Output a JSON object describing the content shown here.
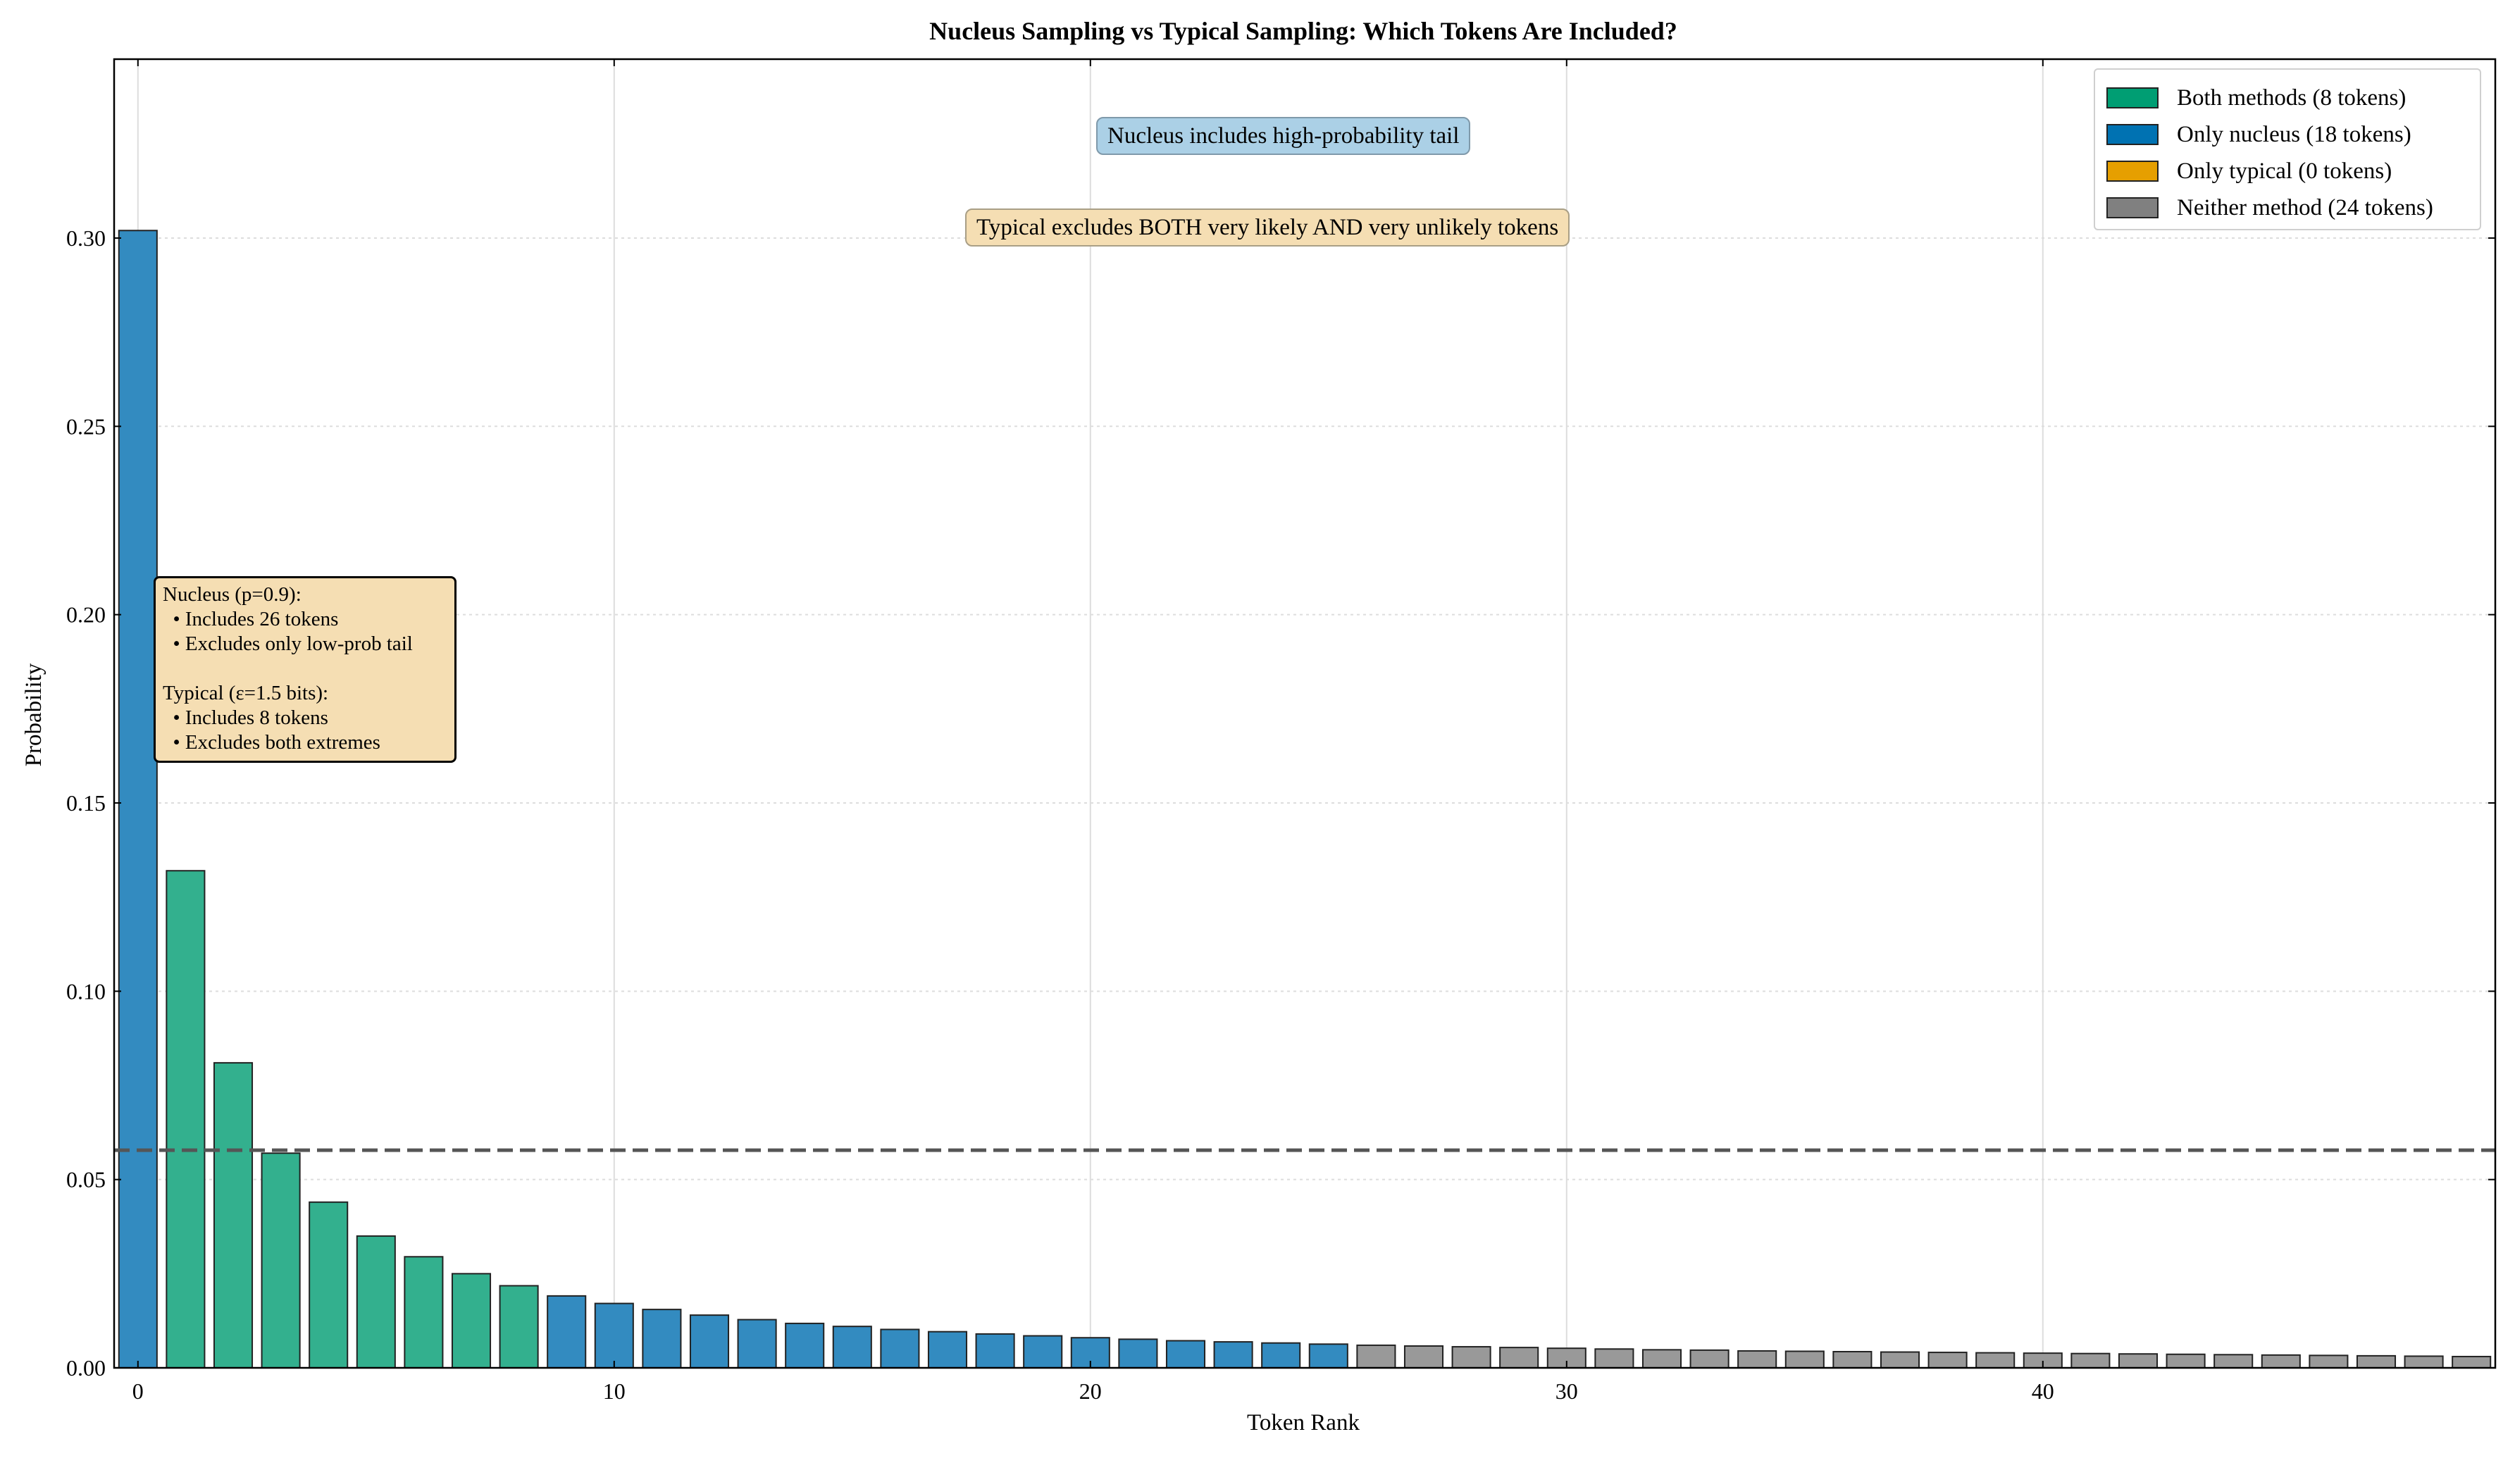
{
  "chart_data": {
    "type": "bar",
    "title": "Nucleus Sampling vs Typical Sampling: Which Tokens Are Included?",
    "xlabel": "Token Rank",
    "ylabel": "Probability",
    "xlim": [
      -0.5,
      49.5
    ],
    "ylim": [
      0,
      0.3475
    ],
    "x_ticks": [
      0,
      10,
      20,
      30,
      40
    ],
    "y_ticks": [
      0.0,
      0.05,
      0.1,
      0.15,
      0.2,
      0.25,
      0.3
    ],
    "y_tick_labels": [
      "0.00",
      "0.05",
      "0.10",
      "0.15",
      "0.20",
      "0.25",
      "0.30"
    ],
    "grid": true,
    "legend_position": "top-right",
    "categories": [
      0,
      1,
      2,
      3,
      4,
      5,
      6,
      7,
      8,
      9,
      10,
      11,
      12,
      13,
      14,
      15,
      16,
      17,
      18,
      19,
      20,
      21,
      22,
      23,
      24,
      25,
      26,
      27,
      28,
      29,
      30,
      31,
      32,
      33,
      34,
      35,
      36,
      37,
      38,
      39,
      40,
      41,
      42,
      43,
      44,
      45,
      46,
      47,
      48,
      49
    ],
    "values": [
      0.302,
      0.132,
      0.081,
      0.057,
      0.044,
      0.035,
      0.0295,
      0.025,
      0.0218,
      0.0191,
      0.0171,
      0.0155,
      0.014,
      0.0128,
      0.0118,
      0.011,
      0.0102,
      0.0096,
      0.009,
      0.0085,
      0.008,
      0.0076,
      0.0072,
      0.0069,
      0.0066,
      0.0063,
      0.006,
      0.0058,
      0.0056,
      0.0054,
      0.0052,
      0.005,
      0.0048,
      0.0047,
      0.0045,
      0.0044,
      0.0043,
      0.0042,
      0.0041,
      0.004,
      0.0039,
      0.0038,
      0.0037,
      0.0036,
      0.0035,
      0.0034,
      0.0033,
      0.0032,
      0.0031,
      0.003
    ],
    "groups": [
      "nucleus",
      "both",
      "both",
      "both",
      "both",
      "both",
      "both",
      "both",
      "both",
      "nucleus",
      "nucleus",
      "nucleus",
      "nucleus",
      "nucleus",
      "nucleus",
      "nucleus",
      "nucleus",
      "nucleus",
      "nucleus",
      "nucleus",
      "nucleus",
      "nucleus",
      "nucleus",
      "nucleus",
      "nucleus",
      "nucleus",
      "neither",
      "neither",
      "neither",
      "neither",
      "neither",
      "neither",
      "neither",
      "neither",
      "neither",
      "neither",
      "neither",
      "neither",
      "neither",
      "neither",
      "neither",
      "neither",
      "neither",
      "neither",
      "neither",
      "neither",
      "neither",
      "neither",
      "neither",
      "neither"
    ],
    "group_colors": {
      "both": "#33b08e",
      "nucleus": "#338bc0",
      "typical": "#e69f00",
      "neither": "#999999"
    },
    "reference_line": {
      "y": 0.0578,
      "style": "dashed",
      "color": "#555555"
    },
    "legend": [
      {
        "label": "Both methods (8 tokens)",
        "color": "#009e73"
      },
      {
        "label": "Only nucleus (18 tokens)",
        "color": "#0072b2"
      },
      {
        "label": "Only typical (0 tokens)",
        "color": "#e69f00"
      },
      {
        "label": "Neither method (24 tokens)",
        "color": "#808080"
      }
    ],
    "annotations": {
      "nucleus_note": "Nucleus includes high-probability tail",
      "typical_note": "Typical excludes BOTH very likely AND very unlikely tokens",
      "info_box": [
        "Nucleus (p=0.9):",
        "  • Includes 26 tokens",
        "  • Excludes only low-prob tail",
        "",
        "Typical (ε=1.5 bits):",
        "  • Includes 8 tokens",
        "  • Excludes both extremes"
      ]
    }
  }
}
